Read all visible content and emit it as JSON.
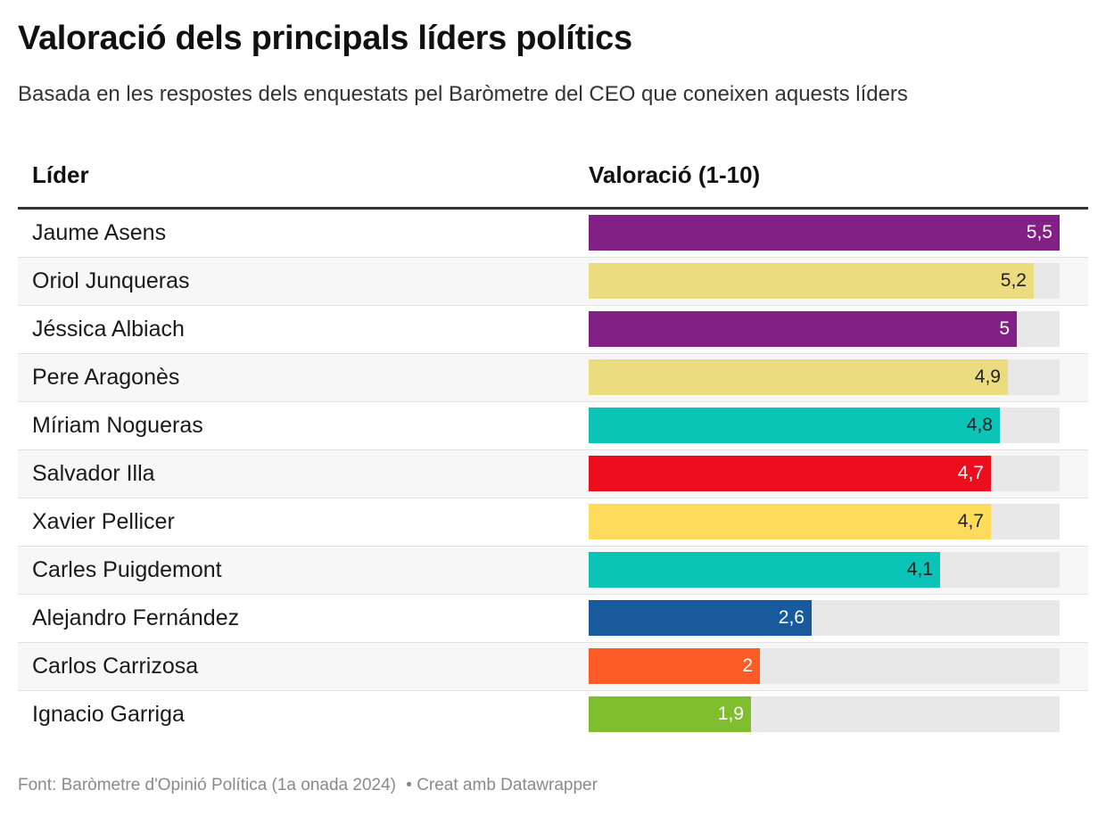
{
  "title": "Valoració dels principals líders polítics",
  "subtitle": "Basada en les respostes dels enquestats pel Baròmetre del CEO que coneixen aquests líders",
  "columns": {
    "name": "Líder",
    "value": "Valoració (1-10)"
  },
  "footer": {
    "source": "Font: Baròmetre d'Opinió Política (1a onada 2024)",
    "credit": "• Creat amb Datawrapper"
  },
  "chart_data": {
    "type": "bar",
    "orientation": "horizontal",
    "value_range": [
      0,
      5.5
    ],
    "rows": [
      {
        "name": "Jaume Asens",
        "value": 5.5,
        "label": "5,5",
        "color": "#832085",
        "label_color": "#ffffff"
      },
      {
        "name": "Oriol Junqueras",
        "value": 5.2,
        "label": "5,2",
        "color": "#ebdc80",
        "label_color": "#222222"
      },
      {
        "name": "Jéssica Albiach",
        "value": 5.0,
        "label": "5",
        "color": "#832085",
        "label_color": "#ffffff"
      },
      {
        "name": "Pere Aragonès",
        "value": 4.9,
        "label": "4,9",
        "color": "#ebdc80",
        "label_color": "#222222"
      },
      {
        "name": "Míriam Nogueras",
        "value": 4.8,
        "label": "4,8",
        "color": "#0ac4b7",
        "label_color": "#222222"
      },
      {
        "name": "Salvador Illa",
        "value": 4.7,
        "label": "4,7",
        "color": "#ec0d1d",
        "label_color": "#ffffff"
      },
      {
        "name": "Xavier Pellicer",
        "value": 4.7,
        "label": "4,7",
        "color": "#fedc5b",
        "label_color": "#222222"
      },
      {
        "name": "Carles Puigdemont",
        "value": 4.1,
        "label": "4,1",
        "color": "#0ac4b7",
        "label_color": "#222222"
      },
      {
        "name": "Alejandro Fernández",
        "value": 2.6,
        "label": "2,6",
        "color": "#185a9c",
        "label_color": "#ffffff"
      },
      {
        "name": "Carlos Carrizosa",
        "value": 2.0,
        "label": "2",
        "color": "#fe5c26",
        "label_color": "#ffffff"
      },
      {
        "name": "Ignacio Garriga",
        "value": 1.9,
        "label": "1,9",
        "color": "#80bd2f",
        "label_color": "#ffffff"
      }
    ]
  }
}
